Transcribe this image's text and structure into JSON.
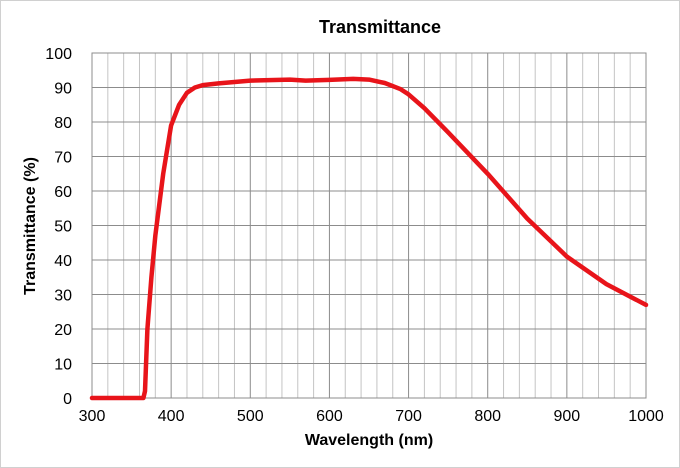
{
  "chart_data": {
    "type": "line",
    "title": "Transmittance",
    "xlabel": "Wavelength (nm)",
    "ylabel": "Transmittance (%)",
    "xlim": [
      300,
      1000
    ],
    "ylim": [
      0,
      100
    ],
    "xticks": [
      300,
      400,
      500,
      600,
      700,
      800,
      900,
      1000
    ],
    "yticks": [
      0,
      10,
      20,
      30,
      40,
      50,
      60,
      70,
      80,
      90,
      100
    ],
    "x_minor_step": 20,
    "grid": true,
    "legend": "none",
    "series": [
      {
        "color": "#e8141a",
        "x": [
          300,
          365,
          367,
          370,
          375,
          380,
          390,
          400,
          410,
          420,
          430,
          440,
          460,
          480,
          500,
          550,
          570,
          600,
          630,
          650,
          670,
          690,
          700,
          720,
          750,
          800,
          850,
          900,
          950,
          1000
        ],
        "y": [
          0,
          0,
          2,
          20,
          35,
          47,
          65,
          79,
          85,
          88.5,
          90,
          90.7,
          91.2,
          91.6,
          92,
          92.3,
          92,
          92.2,
          92.5,
          92.3,
          91.3,
          89.5,
          88,
          84,
          77,
          65,
          52,
          41,
          33,
          27
        ]
      }
    ]
  }
}
